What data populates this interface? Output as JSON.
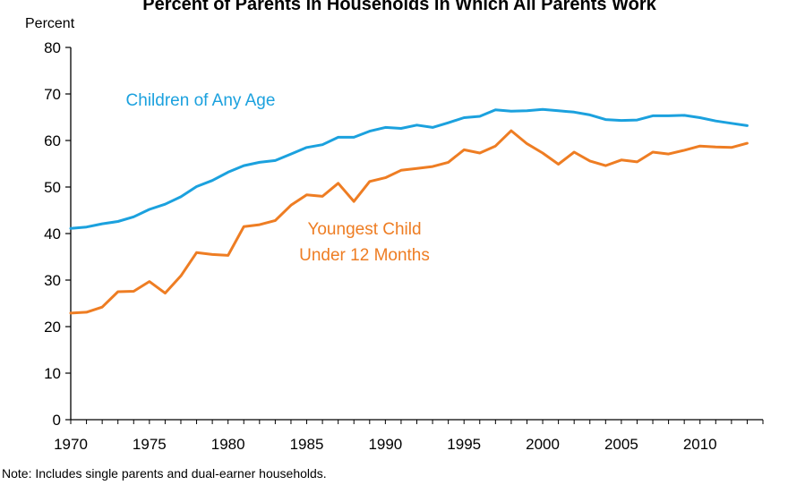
{
  "chart_data": {
    "type": "line",
    "title": "Percent of Parents in Households in Which All Parents Work",
    "ylabel": "Percent",
    "xlabel": "",
    "ylim": [
      0,
      80
    ],
    "yticks": [
      0,
      10,
      20,
      30,
      40,
      50,
      60,
      70,
      80
    ],
    "xlim": [
      1970,
      2014
    ],
    "xticks": [
      1970,
      1975,
      1980,
      1985,
      1990,
      1995,
      2000,
      2005,
      2010
    ],
    "grid": false,
    "x": [
      1970,
      1971,
      1972,
      1973,
      1974,
      1975,
      1976,
      1977,
      1978,
      1979,
      1980,
      1981,
      1982,
      1983,
      1984,
      1985,
      1986,
      1987,
      1988,
      1989,
      1990,
      1991,
      1992,
      1993,
      1994,
      1995,
      1996,
      1997,
      1998,
      1999,
      2000,
      2001,
      2002,
      2003,
      2004,
      2005,
      2006,
      2007,
      2008,
      2009,
      2010,
      2011,
      2012,
      2013
    ],
    "series": [
      {
        "name": "Children of Any Age",
        "color": "#1ba1de",
        "values": [
          41.1,
          41.4,
          42.1,
          42.6,
          43.6,
          45.2,
          46.3,
          47.9,
          50.1,
          51.4,
          53.2,
          54.6,
          55.3,
          55.7,
          57.1,
          58.5,
          59.1,
          60.7,
          60.7,
          62.0,
          62.8,
          62.6,
          63.3,
          62.8,
          63.8,
          64.9,
          65.2,
          66.6,
          66.3,
          66.4,
          66.7,
          66.4,
          66.1,
          65.5,
          64.5,
          64.3,
          64.4,
          65.3,
          65.3,
          65.4,
          64.9,
          64.2,
          63.7,
          63.2
        ]
      },
      {
        "name": "Youngest Child Under 12 Months",
        "color": "#ee7d23",
        "values": [
          22.9,
          23.1,
          24.2,
          27.5,
          27.6,
          29.7,
          27.2,
          30.9,
          35.9,
          35.5,
          35.3,
          41.5,
          41.9,
          42.8,
          46.1,
          48.3,
          48.0,
          50.8,
          46.9,
          51.2,
          52.0,
          53.6,
          54.0,
          54.4,
          55.3,
          58.0,
          57.3,
          58.8,
          62.1,
          59.3,
          57.3,
          54.9,
          57.5,
          55.6,
          54.6,
          55.8,
          55.4,
          57.5,
          57.1,
          57.9,
          58.8,
          58.6,
          58.5,
          59.4
        ]
      }
    ],
    "annotations": [
      {
        "series": 0,
        "lines": [
          "Children of Any Age"
        ]
      },
      {
        "series": 1,
        "lines": [
          "Youngest Child",
          "Under 12 Months"
        ]
      }
    ],
    "note": "Note: Includes single parents and dual-earner households."
  }
}
